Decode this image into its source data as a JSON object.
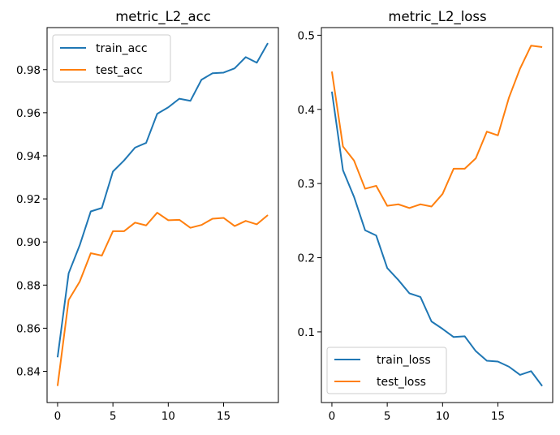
{
  "chart_data": [
    {
      "type": "line",
      "title": "metric_L2_acc",
      "xlabel": "",
      "ylabel": "",
      "x": [
        0,
        1,
        2,
        3,
        4,
        5,
        6,
        7,
        8,
        9,
        10,
        11,
        12,
        13,
        14,
        15,
        16,
        17,
        18,
        19
      ],
      "xlim": [
        -0.95,
        19.95
      ],
      "ylim": [
        0.8255,
        0.9995
      ],
      "xticks": [
        0,
        5,
        10,
        15
      ],
      "yticks": [
        0.84,
        0.86,
        0.88,
        0.9,
        0.92,
        0.94,
        0.96,
        0.98
      ],
      "xtick_labels": [
        "0",
        "5",
        "10",
        "15"
      ],
      "ytick_labels": [
        "0.84",
        "0.86",
        "0.88",
        "0.90",
        "0.92",
        "0.94",
        "0.96",
        "0.98"
      ],
      "grid": false,
      "legend_position": "top-left",
      "series": [
        {
          "name": "train_acc",
          "color": "#1f77b4",
          "values": [
            0.8465,
            0.8855,
            0.8985,
            0.9142,
            0.9158,
            0.9327,
            0.9378,
            0.9438,
            0.946,
            0.9595,
            0.9625,
            0.9665,
            0.9655,
            0.9753,
            0.9783,
            0.9786,
            0.9806,
            0.9858,
            0.9832,
            0.9923
          ]
        },
        {
          "name": "test_acc",
          "color": "#ff7f0e",
          "values": [
            0.8332,
            0.8731,
            0.8816,
            0.8948,
            0.8937,
            0.905,
            0.905,
            0.909,
            0.9077,
            0.9136,
            0.9101,
            0.9103,
            0.9066,
            0.9079,
            0.9108,
            0.9112,
            0.9074,
            0.9098,
            0.9082,
            0.9125
          ]
        }
      ]
    },
    {
      "type": "line",
      "title": "metric_L2_loss",
      "xlabel": "",
      "ylabel": "",
      "x": [
        0,
        1,
        2,
        3,
        4,
        5,
        6,
        7,
        8,
        9,
        10,
        11,
        12,
        13,
        14,
        15,
        16,
        17,
        18,
        19
      ],
      "xlim": [
        -0.95,
        19.95
      ],
      "ylim": [
        0.0047,
        0.5103
      ],
      "xticks": [
        0,
        5,
        10,
        15
      ],
      "yticks": [
        0.1,
        0.2,
        0.3,
        0.4,
        0.5
      ],
      "xtick_labels": [
        "0",
        "5",
        "10",
        "15"
      ],
      "ytick_labels": [
        "0.1",
        "0.2",
        "0.3",
        "0.4",
        "0.5"
      ],
      "grid": false,
      "legend_position": "bottom-left",
      "series": [
        {
          "name": "train_loss",
          "color": "#1f77b4",
          "values": [
            0.424,
            0.318,
            0.282,
            0.237,
            0.23,
            0.186,
            0.17,
            0.152,
            0.147,
            0.114,
            0.104,
            0.093,
            0.094,
            0.074,
            0.061,
            0.06,
            0.053,
            0.042,
            0.047,
            0.027
          ]
        },
        {
          "name": "test_loss",
          "color": "#ff7f0e",
          "values": [
            0.451,
            0.35,
            0.331,
            0.293,
            0.297,
            0.27,
            0.272,
            0.267,
            0.272,
            0.269,
            0.286,
            0.32,
            0.32,
            0.334,
            0.37,
            0.365,
            0.416,
            0.455,
            0.486,
            0.484
          ]
        }
      ]
    }
  ]
}
